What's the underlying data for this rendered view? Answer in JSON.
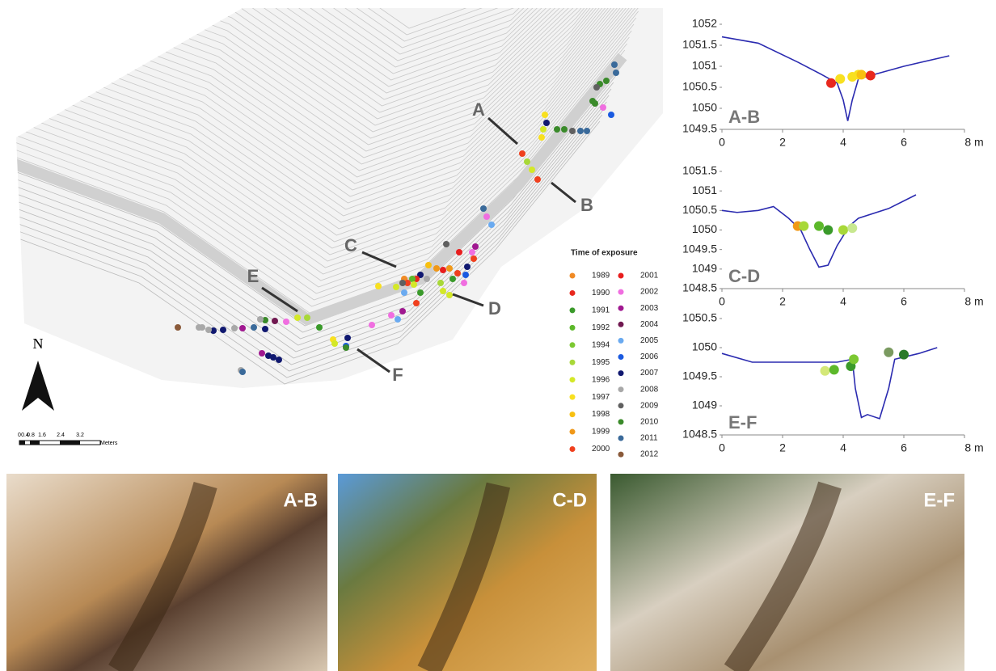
{
  "map": {
    "north": "N",
    "labels": [
      "A",
      "B",
      "C",
      "D",
      "E",
      "F"
    ],
    "scale_bar": {
      "ticks": [
        "0",
        "0.4",
        "0.8",
        "1.6",
        "2.4",
        "3.2"
      ],
      "unit": "Meters"
    },
    "legend": {
      "title": "Time of exposure",
      "items": [
        {
          "label": "1989",
          "color": "#f08a24"
        },
        {
          "label": "1990",
          "color": "#e8281e"
        },
        {
          "label": "1991",
          "color": "#3a9a2a"
        },
        {
          "label": "1992",
          "color": "#5cb82a"
        },
        {
          "label": "1994",
          "color": "#7cc832"
        },
        {
          "label": "1995",
          "color": "#a8d838"
        },
        {
          "label": "1996",
          "color": "#d4e828"
        },
        {
          "label": "1997",
          "color": "#f8e020"
        },
        {
          "label": "1998",
          "color": "#f8c010"
        },
        {
          "label": "1999",
          "color": "#f09818"
        },
        {
          "label": "2000",
          "color": "#f0401e"
        },
        {
          "label": "2001",
          "color": "#e81e1e"
        },
        {
          "label": "2002",
          "color": "#f06ee0"
        },
        {
          "label": "2003",
          "color": "#a01890"
        },
        {
          "label": "2004",
          "color": "#701850"
        },
        {
          "label": "2005",
          "color": "#6aaaf0"
        },
        {
          "label": "2006",
          "color": "#1a5ae0"
        },
        {
          "label": "2007",
          "color": "#101870"
        },
        {
          "label": "2008",
          "color": "#a8a8a8"
        },
        {
          "label": "2009",
          "color": "#606060"
        },
        {
          "label": "2010",
          "color": "#3a8a2a"
        },
        {
          "label": "2011",
          "color": "#3a6a9a"
        },
        {
          "label": "2012",
          "color": "#8a5a3a"
        }
      ]
    }
  },
  "chart_data": [
    {
      "type": "line",
      "label": "A-B",
      "xlim": [
        0,
        8
      ],
      "xticks": [
        0,
        2,
        4,
        6,
        {
          "value": 8,
          "label": "8 m"
        }
      ],
      "ylim": [
        1049.5,
        1052
      ],
      "yticks": [
        1049.5,
        1050,
        1050.5,
        1051,
        1051.5,
        1052
      ],
      "series": [
        {
          "color": "#2b2bb0",
          "x": [
            0,
            1.2,
            2.5,
            3.3,
            3.8,
            4.0,
            4.15,
            4.3,
            4.5,
            5.0,
            6,
            7.5
          ],
          "values": [
            1051.7,
            1051.55,
            1051.1,
            1050.8,
            1050.6,
            1050.2,
            1049.7,
            1050.2,
            1050.7,
            1050.8,
            1051.0,
            1051.25
          ]
        },
        {
          "marker": true,
          "x": [
            3.6,
            3.9,
            4.3,
            4.5,
            4.6,
            4.9
          ],
          "values": [
            1050.6,
            1050.7,
            1050.75,
            1050.8,
            1050.8,
            1050.78
          ],
          "colors": [
            "#e8281e",
            "#f8e020",
            "#f8e020",
            "#f8e020",
            "#f8c010",
            "#e8281e"
          ]
        }
      ]
    },
    {
      "type": "line",
      "label": "C-D",
      "xlim": [
        0,
        8
      ],
      "xticks": [
        0,
        2,
        4,
        6,
        {
          "value": 8,
          "label": "8 m"
        }
      ],
      "ylim": [
        1048.5,
        1051.5
      ],
      "yticks": [
        1048.5,
        1049,
        1049.5,
        1050,
        1050.5,
        1051,
        1051.5
      ],
      "series": [
        {
          "color": "#2b2bb0",
          "x": [
            0,
            0.5,
            1.2,
            1.7,
            2.2,
            2.6,
            2.9,
            3.2,
            3.5,
            3.8,
            4.2,
            4.5,
            5.5,
            6.4
          ],
          "values": [
            1050.5,
            1050.45,
            1050.5,
            1050.6,
            1050.3,
            1050.0,
            1049.5,
            1049.05,
            1049.1,
            1049.6,
            1050.1,
            1050.3,
            1050.55,
            1050.9
          ]
        },
        {
          "marker": true,
          "x": [
            2.5,
            2.7,
            3.2,
            3.5,
            4.0,
            4.3
          ],
          "values": [
            1050.1,
            1050.1,
            1050.1,
            1050.0,
            1050.0,
            1050.05
          ],
          "colors": [
            "#f09818",
            "#a8d838",
            "#5cb82a",
            "#3a9a2a",
            "#a8d838",
            "#c8e890"
          ]
        }
      ]
    },
    {
      "type": "line",
      "label": "E-F",
      "xlim": [
        0,
        8
      ],
      "xticks": [
        0,
        2,
        4,
        6,
        {
          "value": 8,
          "label": "8 m"
        }
      ],
      "ylim": [
        1048.5,
        1050.5
      ],
      "yticks": [
        1048.5,
        1049,
        1049.5,
        1050,
        1050.5
      ],
      "series": [
        {
          "color": "#2b2bb0",
          "x": [
            0,
            1,
            2,
            3.8,
            4.3,
            4.4,
            4.6,
            4.8,
            5.2,
            5.5,
            5.7,
            6.5,
            7.1
          ],
          "values": [
            1049.9,
            1049.75,
            1049.75,
            1049.75,
            1049.8,
            1049.3,
            1048.8,
            1048.85,
            1048.78,
            1049.3,
            1049.8,
            1049.9,
            1050.0
          ]
        },
        {
          "marker": true,
          "x": [
            3.4,
            3.7,
            4.25,
            4.35,
            5.5,
            6.0
          ],
          "values": [
            1049.6,
            1049.62,
            1049.68,
            1049.8,
            1049.92,
            1049.88
          ],
          "colors": [
            "#d4e878",
            "#5cb82a",
            "#3a9a2a",
            "#7cc832",
            "#7a9a60",
            "#2a7a2a"
          ]
        }
      ]
    }
  ],
  "photos": [
    {
      "label": "A-B"
    },
    {
      "label": "C-D"
    },
    {
      "label": "E-F"
    }
  ]
}
